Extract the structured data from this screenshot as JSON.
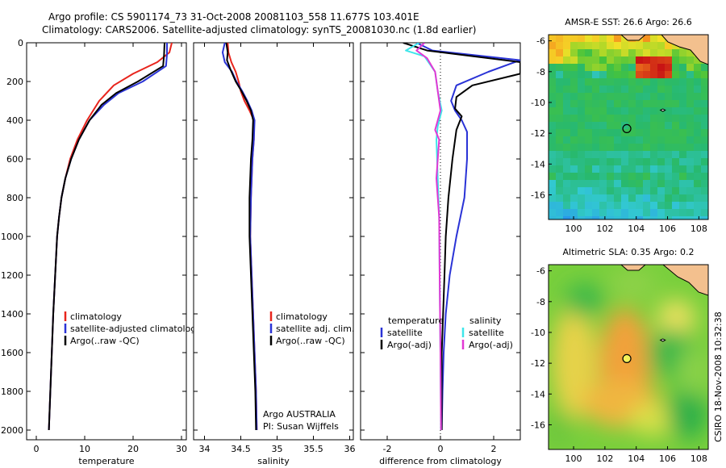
{
  "header": {
    "title_line1": "Argo profile: CS 5901174_73 31-Oct-2008 20081103_558 11.677S 103.401E",
    "title_line2": "Climatology: CARS2006. Satellite-adjusted climatology: synTS_20081030.nc (1.8d earlier)"
  },
  "credit": "CSIRO 18-Nov-2008 10:32:38",
  "colors": {
    "climatology": "#e8241c",
    "satellite": "#2a33d6",
    "argo": "#000000",
    "satellite_sal_diff": "#3ee6ea",
    "argo_sal_diff": "#e238d4"
  },
  "chart_data": [
    {
      "type": "line",
      "id": "temperature",
      "xlabel": "temperature",
      "ylabel": "",
      "xlim": [
        -2,
        31
      ],
      "ylim": [
        2050,
        0
      ],
      "xticks": [
        0,
        10,
        20,
        30
      ],
      "xtick_labels": [
        "0",
        "10",
        "20",
        "30"
      ],
      "yticks": [
        0,
        200,
        400,
        600,
        800,
        1000,
        1200,
        1400,
        1600,
        1800,
        2000
      ],
      "ytick_labels": [
        "0",
        "200",
        "400",
        "600",
        "800",
        "1000",
        "1200",
        "1400",
        "1600",
        "1800",
        "2000"
      ],
      "legend": [
        "climatology",
        "satellite-adjusted climatology",
        "Argo(..raw -QC)"
      ],
      "series": [
        {
          "name": "climatology",
          "color": "#e8241c",
          "points": [
            [
              28,
              0
            ],
            [
              27.5,
              50
            ],
            [
              25,
              100
            ],
            [
              20,
              160
            ],
            [
              16,
              220
            ],
            [
              13,
              300
            ],
            [
              10.5,
              400
            ],
            [
              8.5,
              500
            ],
            [
              7,
              600
            ],
            [
              6,
              700
            ],
            [
              5.2,
              800
            ],
            [
              4.7,
              900
            ],
            [
              4.3,
              1000
            ],
            [
              3.9,
              1200
            ],
            [
              3.5,
              1400
            ],
            [
              3.2,
              1600
            ],
            [
              2.9,
              1800
            ],
            [
              2.6,
              2000
            ]
          ]
        },
        {
          "name": "satellite-adjusted climatology",
          "color": "#2a33d6",
          "points": [
            [
              27,
              0
            ],
            [
              27,
              60
            ],
            [
              26.8,
              120
            ],
            [
              22,
              200
            ],
            [
              17,
              260
            ],
            [
              14,
              320
            ],
            [
              11,
              400
            ],
            [
              8.8,
              500
            ],
            [
              7.2,
              600
            ],
            [
              6,
              700
            ],
            [
              5.2,
              800
            ],
            [
              4.7,
              900
            ],
            [
              4.3,
              1000
            ],
            [
              3.9,
              1200
            ],
            [
              3.5,
              1400
            ],
            [
              3.2,
              1600
            ],
            [
              2.9,
              1800
            ],
            [
              2.6,
              2000
            ]
          ]
        },
        {
          "name": "Argo(..raw -QC)",
          "color": "#000000",
          "points": [
            [
              26.5,
              0
            ],
            [
              26.4,
              60
            ],
            [
              26.2,
              120
            ],
            [
              21,
              200
            ],
            [
              16.5,
              260
            ],
            [
              13.5,
              320
            ],
            [
              11,
              400
            ],
            [
              8.8,
              500
            ],
            [
              7.2,
              600
            ],
            [
              6,
              700
            ],
            [
              5.2,
              800
            ],
            [
              4.7,
              900
            ],
            [
              4.3,
              1000
            ],
            [
              3.9,
              1200
            ],
            [
              3.5,
              1400
            ],
            [
              3.2,
              1600
            ],
            [
              2.9,
              1800
            ],
            [
              2.6,
              2000
            ]
          ]
        }
      ]
    },
    {
      "type": "line",
      "id": "salinity",
      "xlabel": "salinity",
      "xlim": [
        33.85,
        36.05
      ],
      "ylim": [
        2050,
        0
      ],
      "xticks": [
        34,
        34.5,
        35,
        35.5,
        36
      ],
      "xtick_labels": [
        "34",
        "34.5",
        "35",
        "35.5",
        "36"
      ],
      "legend": [
        "climatology",
        "satellite adj. clim.",
        "Argo(..raw -QC)"
      ],
      "annotations": [
        "Argo AUSTRALIA",
        "PI: Susan Wijffels"
      ],
      "series": [
        {
          "name": "climatology",
          "color": "#e8241c",
          "points": [
            [
              34.32,
              0
            ],
            [
              34.33,
              50
            ],
            [
              34.37,
              100
            ],
            [
              34.43,
              150
            ],
            [
              34.47,
              200
            ],
            [
              34.5,
              250
            ],
            [
              34.55,
              300
            ],
            [
              34.62,
              350
            ],
            [
              34.68,
              400
            ],
            [
              34.68,
              500
            ],
            [
              34.66,
              600
            ],
            [
              34.64,
              800
            ],
            [
              34.63,
              1000
            ],
            [
              34.65,
              1200
            ],
            [
              34.67,
              1400
            ],
            [
              34.69,
              1600
            ],
            [
              34.71,
              1800
            ],
            [
              34.72,
              2000
            ]
          ]
        },
        {
          "name": "satellite adj. clim.",
          "color": "#2a33d6",
          "points": [
            [
              34.28,
              0
            ],
            [
              34.25,
              50
            ],
            [
              34.28,
              100
            ],
            [
              34.38,
              150
            ],
            [
              34.44,
              200
            ],
            [
              34.52,
              250
            ],
            [
              34.59,
              300
            ],
            [
              34.65,
              350
            ],
            [
              34.69,
              400
            ],
            [
              34.68,
              500
            ],
            [
              34.66,
              600
            ],
            [
              34.64,
              800
            ],
            [
              34.63,
              1000
            ],
            [
              34.65,
              1200
            ],
            [
              34.67,
              1400
            ],
            [
              34.69,
              1600
            ],
            [
              34.71,
              1800
            ],
            [
              34.72,
              2000
            ]
          ]
        },
        {
          "name": "Argo(..raw -QC)",
          "color": "#000000",
          "points": [
            [
              34.3,
              0
            ],
            [
              34.32,
              50
            ],
            [
              34.31,
              90
            ],
            [
              34.36,
              140
            ],
            [
              34.43,
              200
            ],
            [
              34.51,
              250
            ],
            [
              34.58,
              300
            ],
            [
              34.64,
              350
            ],
            [
              34.67,
              400
            ],
            [
              34.66,
              500
            ],
            [
              34.64,
              600
            ],
            [
              34.62,
              800
            ],
            [
              34.62,
              1000
            ],
            [
              34.64,
              1200
            ],
            [
              34.66,
              1400
            ],
            [
              34.68,
              1600
            ],
            [
              34.7,
              1800
            ],
            [
              34.71,
              2000
            ]
          ]
        }
      ]
    },
    {
      "type": "line",
      "id": "difference",
      "xlabel": "difference from climatology",
      "xlim": [
        -3,
        3
      ],
      "ylim": [
        2050,
        0
      ],
      "xticks": [
        -2,
        0,
        2
      ],
      "xtick_labels": [
        "-2",
        "0",
        "2"
      ],
      "legend_col1_title": "temperature",
      "legend_col2_title": "salinity",
      "legend": [
        "satellite",
        "Argo(-adj)",
        "satellite",
        "Argo(-adj)"
      ],
      "series": [
        {
          "name": "temperature satellite",
          "color": "#2a33d6",
          "points": [
            [
              -0.9,
              0
            ],
            [
              -0.3,
              40
            ],
            [
              3.0,
              90
            ],
            [
              1.8,
              150
            ],
            [
              0.6,
              220
            ],
            [
              0.4,
              300
            ],
            [
              0.55,
              350
            ],
            [
              0.8,
              400
            ],
            [
              1.0,
              460
            ],
            [
              1.0,
              600
            ],
            [
              0.9,
              800
            ],
            [
              0.6,
              1000
            ],
            [
              0.35,
              1200
            ],
            [
              0.2,
              1400
            ],
            [
              0.12,
              1600
            ],
            [
              0.08,
              1800
            ],
            [
              0.05,
              2000
            ]
          ]
        },
        {
          "name": "temperature Argo(-adj)",
          "color": "#000000",
          "points": [
            [
              -1.4,
              0
            ],
            [
              -0.5,
              40
            ],
            [
              3.0,
              100
            ],
            [
              3.0,
              160
            ],
            [
              1.2,
              220
            ],
            [
              0.6,
              280
            ],
            [
              0.55,
              340
            ],
            [
              0.8,
              380
            ],
            [
              0.6,
              450
            ],
            [
              0.45,
              600
            ],
            [
              0.3,
              800
            ],
            [
              0.2,
              1000
            ],
            [
              0.15,
              1200
            ],
            [
              0.1,
              1400
            ],
            [
              0.05,
              1600
            ],
            [
              0.05,
              1800
            ],
            [
              0.05,
              2000
            ]
          ]
        },
        {
          "name": "salinity satellite",
          "color": "#3ee6ea",
          "points": [
            [
              -0.8,
              0
            ],
            [
              -1.3,
              40
            ],
            [
              -0.6,
              70
            ],
            [
              -0.2,
              150
            ],
            [
              -0.1,
              250
            ],
            [
              0.05,
              350
            ],
            [
              -0.1,
              430
            ],
            [
              -0.15,
              500
            ],
            [
              -0.1,
              700
            ],
            [
              -0.05,
              900
            ],
            [
              -0.03,
              1200
            ],
            [
              0,
              1600
            ],
            [
              0.02,
              2000
            ]
          ]
        },
        {
          "name": "salinity Argo(-adj)",
          "color": "#e238d4",
          "points": [
            [
              -0.6,
              0
            ],
            [
              -0.9,
              40
            ],
            [
              -0.5,
              80
            ],
            [
              -0.2,
              150
            ],
            [
              -0.1,
              250
            ],
            [
              0,
              350
            ],
            [
              -0.2,
              450
            ],
            [
              -0.05,
              500
            ],
            [
              -0.15,
              700
            ],
            [
              -0.05,
              900
            ],
            [
              -0.03,
              1200
            ],
            [
              0,
              1600
            ],
            [
              0.02,
              2000
            ]
          ]
        }
      ]
    },
    {
      "type": "heatmap",
      "id": "sst",
      "title": "AMSR-E SST: 26.6  Argo: 26.6",
      "xlim": [
        98.4,
        108.6
      ],
      "ylim": [
        -17.6,
        -5.6
      ],
      "xticks": [
        100,
        102,
        104,
        106,
        108
      ],
      "xtick_labels": [
        "100",
        "102",
        "104",
        "106",
        "108"
      ],
      "yticks": [
        -6,
        -8,
        -10,
        -12,
        -14,
        -16
      ],
      "ytick_labels": [
        "-6",
        "-8",
        "-10",
        "-12",
        "-14",
        "-16"
      ],
      "argo_position": [
        103.4,
        -11.7
      ],
      "island_position": [
        105.7,
        -10.5
      ]
    },
    {
      "type": "heatmap",
      "id": "sla",
      "title": "Altimetric SLA: 0.35  Argo: 0.2",
      "xlim": [
        98.4,
        108.6
      ],
      "ylim": [
        -17.6,
        -5.6
      ],
      "xticks": [
        100,
        102,
        104,
        106,
        108
      ],
      "xtick_labels": [
        "100",
        "102",
        "104",
        "106",
        "108"
      ],
      "yticks": [
        -6,
        -8,
        -10,
        -12,
        -14,
        -16
      ],
      "ytick_labels": [
        "-6",
        "-8",
        "-10",
        "-12",
        "-14",
        "-16"
      ],
      "argo_position": [
        103.4,
        -11.7
      ],
      "island_position": [
        105.7,
        -10.5
      ]
    }
  ]
}
